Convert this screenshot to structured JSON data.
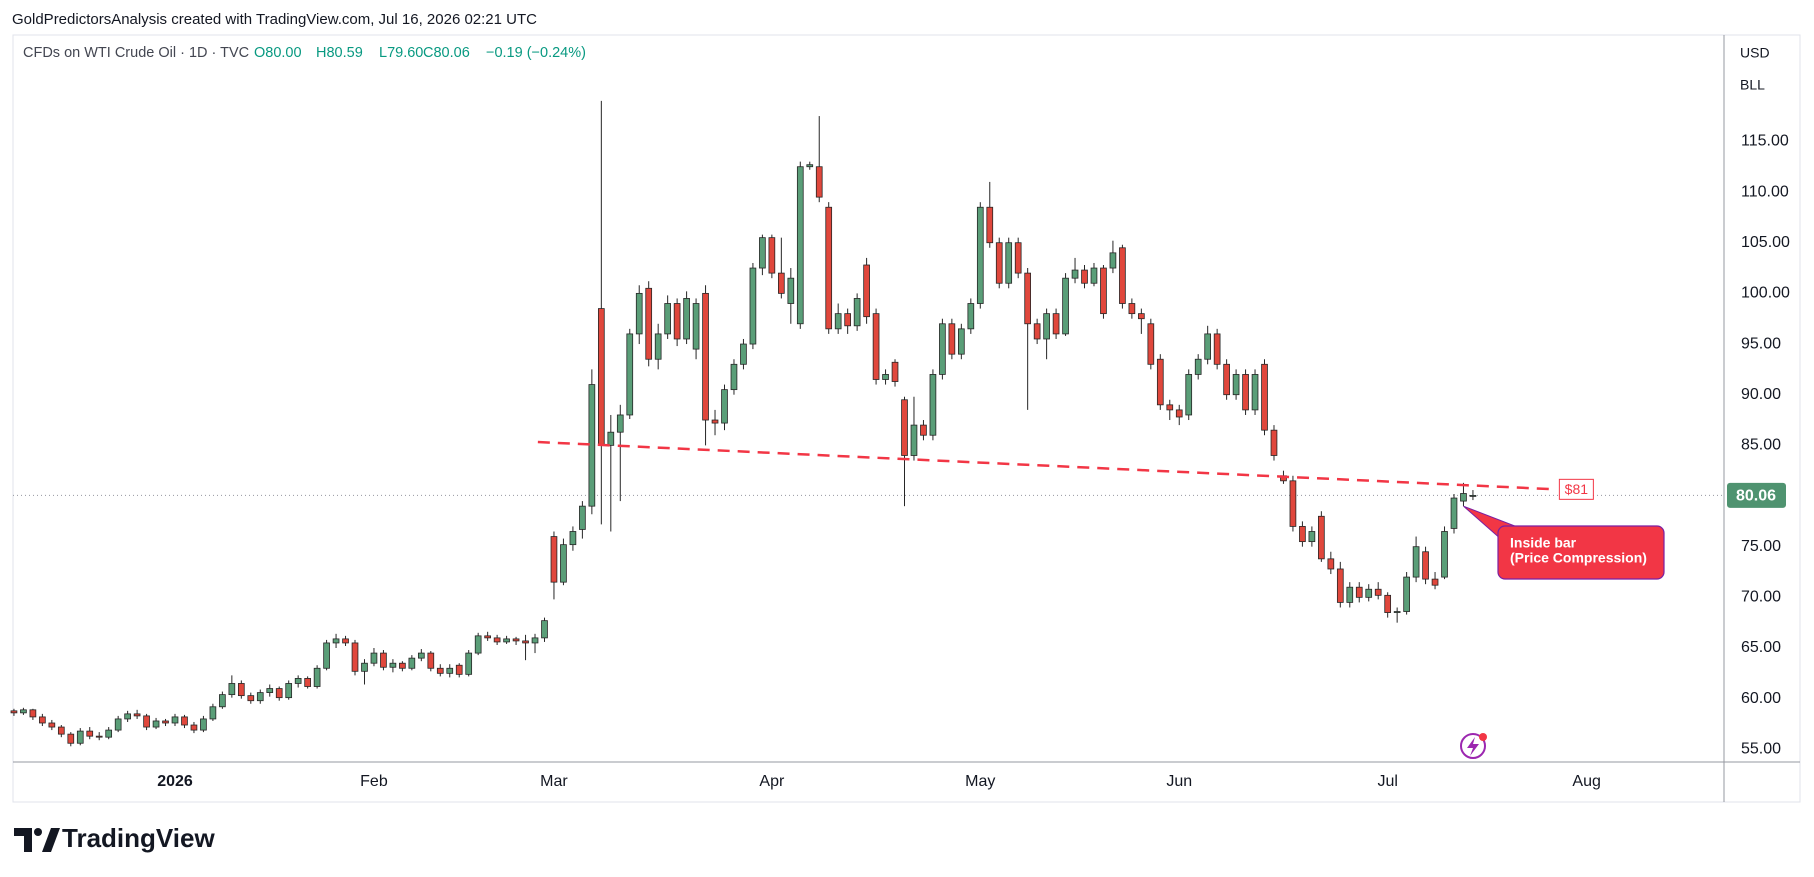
{
  "chart_data": {
    "type": "candlestick",
    "credit": "GoldPredictorsAnalysis created with TradingView.com, Jul 16, 2026 02:21 UTC",
    "legend": {
      "title": "CFDs on WTI Crude Oil · 1D · TVC",
      "open": "O80.00",
      "high": "H80.59",
      "low": "L79.60",
      "close": "C80.06",
      "change": "−0.19 (−0.24%)"
    },
    "currency": "USD",
    "unit": "BLL",
    "brand": "TradingView",
    "up_color": "#5a9e78",
    "down_color": "#e0473c",
    "outline_color": "#262626",
    "last_price": {
      "value": 80.06,
      "label": "80.06",
      "color": "#4f9370"
    },
    "trendline": {
      "from": [
        55.3,
        85.33
      ],
      "to": [
        162.7,
        80.66
      ],
      "label": "$81",
      "color": "#f23645"
    },
    "annotation": {
      "lines": [
        "Inside bar",
        "(Price Compression)"
      ],
      "at": 153,
      "color": "#f23645"
    },
    "xlim": [
      -0.1,
      180.5
    ],
    "ylim": [
      53.75,
      125.5
    ],
    "grid": false,
    "xticks": [
      {
        "value": 17,
        "label": "2026"
      },
      {
        "value": 38,
        "label": "Feb"
      },
      {
        "value": 57,
        "label": "Mar"
      },
      {
        "value": 80,
        "label": "Apr"
      },
      {
        "value": 102,
        "label": "May"
      },
      {
        "value": 123,
        "label": "Jun"
      },
      {
        "value": 145,
        "label": "Jul"
      },
      {
        "value": 166,
        "label": "Aug"
      }
    ],
    "yticks": [
      {
        "value": 55,
        "label": "55.00"
      },
      {
        "value": 60,
        "label": "60.00"
      },
      {
        "value": 65,
        "label": "65.00"
      },
      {
        "value": 70,
        "label": "70.00"
      },
      {
        "value": 75,
        "label": "75.00"
      },
      {
        "value": 80,
        "label": "80.00"
      },
      {
        "value": 85,
        "label": "85.00"
      },
      {
        "value": 90,
        "label": "90.00"
      },
      {
        "value": 95,
        "label": "95.00"
      },
      {
        "value": 100,
        "label": "100.00"
      },
      {
        "value": 105,
        "label": "105.00"
      },
      {
        "value": 110,
        "label": "110.00"
      },
      {
        "value": 115,
        "label": "115.00"
      }
    ],
    "ohlc": [
      [
        58.8,
        59.0,
        58.3,
        58.6
      ],
      [
        58.6,
        59.1,
        58.4,
        58.9
      ],
      [
        58.9,
        59.0,
        57.9,
        58.2
      ],
      [
        58.2,
        58.5,
        57.3,
        57.6
      ],
      [
        57.6,
        57.9,
        56.9,
        57.2
      ],
      [
        57.2,
        57.4,
        56.2,
        56.5
      ],
      [
        56.5,
        56.7,
        55.3,
        55.6
      ],
      [
        55.6,
        57.1,
        55.4,
        56.8
      ],
      [
        56.8,
        57.2,
        56.0,
        56.3
      ],
      [
        56.3,
        56.7,
        55.9,
        56.2
      ],
      [
        56.2,
        57.2,
        56.0,
        56.9
      ],
      [
        56.9,
        58.3,
        56.7,
        58.0
      ],
      [
        58.0,
        58.8,
        57.7,
        58.5
      ],
      [
        58.5,
        58.9,
        58.0,
        58.3
      ],
      [
        58.3,
        58.5,
        56.9,
        57.2
      ],
      [
        57.2,
        58.1,
        57.0,
        57.8
      ],
      [
        57.8,
        58.0,
        57.3,
        57.6
      ],
      [
        57.6,
        58.5,
        57.3,
        58.2
      ],
      [
        58.2,
        58.4,
        57.1,
        57.4
      ],
      [
        57.4,
        57.7,
        56.6,
        56.9
      ],
      [
        56.9,
        58.3,
        56.7,
        58.0
      ],
      [
        58.0,
        59.5,
        57.8,
        59.2
      ],
      [
        59.2,
        60.7,
        59.0,
        60.4
      ],
      [
        60.4,
        62.3,
        60.1,
        61.5
      ],
      [
        61.5,
        61.8,
        60.0,
        60.3
      ],
      [
        60.3,
        60.6,
        59.5,
        59.8
      ],
      [
        59.8,
        60.9,
        59.5,
        60.6
      ],
      [
        60.6,
        61.4,
        60.2,
        61.0
      ],
      [
        61.0,
        61.2,
        59.8,
        60.1
      ],
      [
        60.1,
        61.8,
        59.9,
        61.5
      ],
      [
        61.5,
        62.3,
        61.1,
        62.0
      ],
      [
        62.0,
        62.2,
        61.0,
        61.2
      ],
      [
        61.2,
        63.3,
        61.0,
        63.0
      ],
      [
        63.0,
        65.8,
        62.8,
        65.5
      ],
      [
        65.5,
        66.4,
        65.0,
        65.9
      ],
      [
        65.9,
        66.2,
        65.2,
        65.5
      ],
      [
        65.5,
        65.8,
        62.3,
        62.7
      ],
      [
        62.7,
        63.9,
        61.4,
        63.5
      ],
      [
        63.5,
        65.0,
        63.2,
        64.5
      ],
      [
        64.5,
        64.8,
        62.8,
        63.1
      ],
      [
        63.1,
        63.9,
        62.6,
        63.5
      ],
      [
        63.5,
        63.7,
        62.7,
        63.0
      ],
      [
        63.0,
        64.3,
        62.8,
        64.0
      ],
      [
        64.0,
        64.9,
        63.7,
        64.5
      ],
      [
        64.5,
        64.7,
        62.7,
        63.0
      ],
      [
        63.0,
        63.4,
        62.2,
        62.5
      ],
      [
        62.5,
        63.4,
        62.1,
        63.0
      ],
      [
        63.3,
        63.5,
        62.1,
        62.4
      ],
      [
        62.4,
        64.8,
        62.2,
        64.5
      ],
      [
        64.5,
        66.5,
        64.3,
        66.2
      ],
      [
        66.2,
        66.6,
        65.7,
        66.0
      ],
      [
        66.0,
        66.3,
        65.3,
        65.6
      ],
      [
        65.6,
        66.2,
        65.4,
        65.9
      ],
      [
        65.9,
        66.1,
        65.3,
        65.7
      ],
      [
        65.7,
        66.3,
        63.8,
        65.5
      ],
      [
        65.5,
        66.4,
        64.5,
        66.0
      ],
      [
        66.0,
        68.0,
        65.6,
        67.7
      ],
      [
        76.0,
        76.5,
        69.8,
        71.5
      ],
      [
        71.5,
        75.8,
        71.2,
        75.2
      ],
      [
        75.2,
        77.0,
        74.6,
        76.5
      ],
      [
        76.7,
        79.5,
        75.8,
        79.0
      ],
      [
        79.0,
        92.5,
        78.2,
        91.0
      ],
      [
        98.5,
        119.0,
        77.2,
        85.0
      ],
      [
        85.0,
        88.0,
        76.5,
        86.3
      ],
      [
        86.3,
        89.0,
        79.5,
        88.0
      ],
      [
        88.0,
        96.5,
        87.6,
        96.0
      ],
      [
        96.0,
        100.8,
        95.0,
        100.0
      ],
      [
        100.5,
        101.2,
        92.8,
        93.5
      ],
      [
        93.5,
        97.0,
        92.5,
        96.0
      ],
      [
        96.0,
        99.8,
        95.5,
        99.0
      ],
      [
        99.0,
        99.5,
        94.8,
        95.5
      ],
      [
        95.5,
        100.2,
        95.0,
        99.5
      ],
      [
        94.5,
        99.5,
        93.5,
        99.0
      ],
      [
        100.0,
        100.8,
        85.0,
        87.5
      ],
      [
        87.5,
        88.5,
        86.0,
        87.2
      ],
      [
        87.2,
        91.0,
        86.5,
        90.5
      ],
      [
        90.5,
        93.5,
        90.0,
        93.0
      ],
      [
        93.0,
        95.5,
        92.5,
        95.0
      ],
      [
        95.0,
        103.0,
        94.5,
        102.5
      ],
      [
        102.5,
        105.8,
        101.8,
        105.5
      ],
      [
        105.5,
        105.8,
        101.5,
        102.0
      ],
      [
        102.0,
        105.5,
        99.5,
        100.0
      ],
      [
        99.0,
        102.5,
        97.0,
        101.5
      ],
      [
        97.0,
        113.0,
        96.5,
        112.5
      ],
      [
        112.5,
        113.0,
        112.2,
        112.7
      ],
      [
        112.5,
        117.5,
        109.0,
        109.5
      ],
      [
        108.5,
        109.0,
        96.0,
        96.5
      ],
      [
        96.5,
        99.0,
        96.0,
        98.0
      ],
      [
        98.0,
        98.5,
        96.0,
        96.8
      ],
      [
        96.8,
        100.0,
        96.3,
        99.5
      ],
      [
        102.8,
        103.5,
        97.0,
        97.7
      ],
      [
        98.0,
        98.5,
        91.0,
        91.5
      ],
      [
        91.5,
        92.5,
        91.0,
        92.0
      ],
      [
        93.2,
        93.5,
        90.8,
        91.3
      ],
      [
        89.5,
        89.8,
        79.0,
        84.0
      ],
      [
        84.0,
        89.8,
        83.5,
        87.0
      ],
      [
        87.0,
        87.5,
        85.5,
        86.0
      ],
      [
        86.0,
        92.5,
        85.5,
        92.0
      ],
      [
        92.0,
        97.5,
        91.5,
        97.0
      ],
      [
        97.0,
        97.5,
        93.5,
        94.0
      ],
      [
        94.0,
        97.0,
        93.5,
        96.5
      ],
      [
        96.5,
        99.5,
        96.0,
        99.0
      ],
      [
        99.0,
        109.0,
        98.5,
        108.5
      ],
      [
        108.5,
        111.0,
        104.5,
        105.0
      ],
      [
        105.0,
        105.5,
        100.5,
        101.0
      ],
      [
        101.0,
        105.5,
        100.5,
        105.0
      ],
      [
        105.0,
        105.5,
        101.5,
        102.0
      ],
      [
        102.0,
        102.5,
        88.5,
        97.0
      ],
      [
        97.0,
        97.5,
        95.0,
        95.5
      ],
      [
        95.5,
        98.5,
        93.5,
        98.0
      ],
      [
        98.0,
        98.5,
        95.5,
        96.0
      ],
      [
        96.0,
        102.0,
        95.8,
        101.5
      ],
      [
        101.5,
        103.5,
        101.0,
        102.3
      ],
      [
        102.3,
        102.8,
        100.5,
        101.0
      ],
      [
        101.0,
        103.0,
        100.7,
        102.5
      ],
      [
        102.5,
        102.8,
        97.5,
        98.0
      ],
      [
        102.5,
        105.2,
        102.0,
        104.0
      ],
      [
        104.5,
        104.8,
        98.5,
        99.0
      ],
      [
        99.0,
        99.5,
        97.5,
        98.0
      ],
      [
        98.0,
        98.5,
        96.0,
        97.5
      ],
      [
        97.0,
        97.5,
        92.5,
        93.0
      ],
      [
        93.5,
        94.0,
        88.5,
        89.0
      ],
      [
        89.0,
        89.5,
        87.5,
        88.5
      ],
      [
        88.5,
        89.0,
        87.0,
        87.8
      ],
      [
        88.0,
        92.5,
        87.5,
        92.0
      ],
      [
        92.0,
        94.0,
        91.5,
        93.5
      ],
      [
        93.5,
        96.8,
        93.0,
        96.0
      ],
      [
        96.0,
        96.5,
        92.5,
        93.0
      ],
      [
        93.0,
        93.5,
        89.5,
        90.0
      ],
      [
        90.0,
        92.5,
        89.5,
        92.0
      ],
      [
        92.0,
        92.5,
        88.0,
        88.5
      ],
      [
        88.5,
        92.5,
        88.0,
        92.0
      ],
      [
        93.0,
        93.5,
        86.0,
        86.5
      ],
      [
        86.5,
        87.0,
        83.5,
        84.0
      ],
      [
        82.0,
        82.5,
        81.2,
        81.5
      ],
      [
        81.5,
        82.0,
        76.5,
        77.0
      ],
      [
        77.0,
        77.5,
        75.0,
        75.5
      ],
      [
        75.5,
        77.0,
        75.0,
        76.5
      ],
      [
        78.0,
        78.5,
        73.5,
        73.8
      ],
      [
        73.8,
        74.5,
        72.3,
        72.8
      ],
      [
        72.8,
        73.5,
        69.0,
        69.5
      ],
      [
        69.5,
        71.5,
        69.0,
        71.0
      ],
      [
        71.0,
        71.5,
        69.5,
        70.0
      ],
      [
        70.0,
        71.3,
        69.6,
        70.8
      ],
      [
        70.8,
        71.5,
        69.8,
        70.2
      ],
      [
        70.2,
        70.5,
        68.0,
        68.5
      ],
      [
        68.5,
        69.0,
        67.5,
        68.6
      ],
      [
        68.6,
        72.5,
        68.3,
        72.0
      ],
      [
        72.0,
        76.0,
        71.5,
        75.0
      ],
      [
        74.5,
        75.0,
        71.3,
        71.8
      ],
      [
        71.8,
        72.5,
        70.8,
        71.2
      ],
      [
        72.0,
        77.0,
        71.8,
        76.5
      ],
      [
        76.8,
        80.2,
        76.3,
        79.8
      ],
      [
        79.5,
        81.3,
        79.0,
        80.25
      ],
      [
        80.0,
        80.59,
        79.6,
        80.06
      ]
    ]
  }
}
